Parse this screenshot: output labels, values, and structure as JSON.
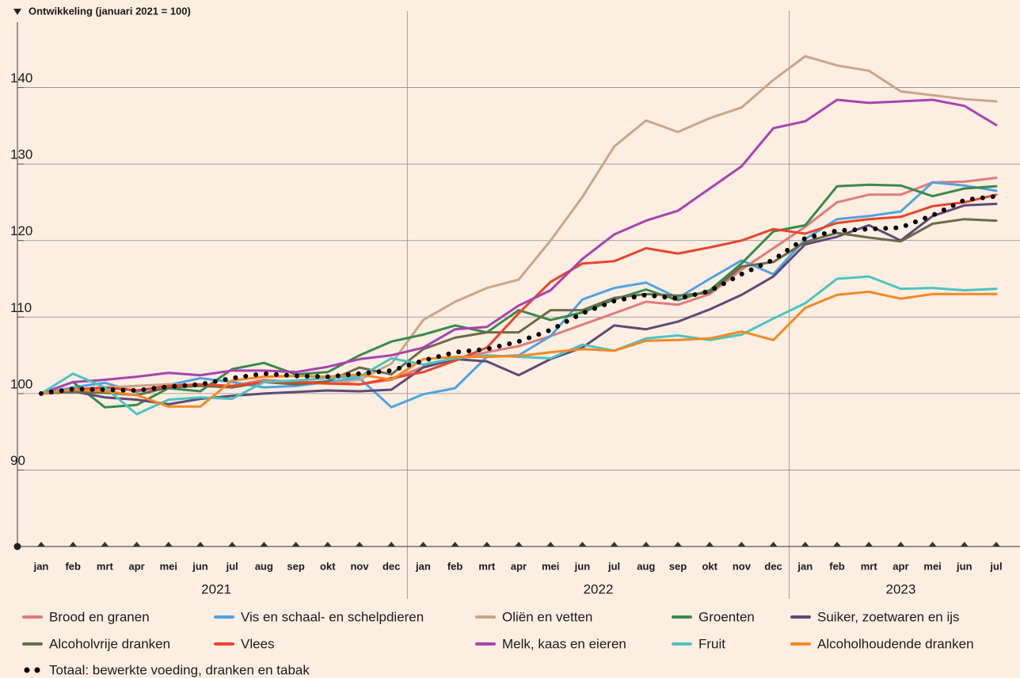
{
  "chart_data": {
    "type": "line",
    "y_axis_title": "Ontwikkeling (januari 2021 = 100)",
    "categories": [
      "jan",
      "feb",
      "mrt",
      "apr",
      "mei",
      "jun",
      "jul",
      "aug",
      "sep",
      "okt",
      "nov",
      "dec",
      "jan",
      "feb",
      "mrt",
      "apr",
      "mei",
      "jun",
      "jul",
      "aug",
      "sep",
      "okt",
      "nov",
      "dec",
      "jan",
      "feb",
      "mrt",
      "apr",
      "mei",
      "jun",
      "jul"
    ],
    "years": [
      "2021",
      "2022",
      "2023"
    ],
    "ylim": [
      80,
      150
    ],
    "yticks": [
      90,
      100,
      110,
      120,
      130,
      140
    ],
    "grid": true,
    "series": [
      {
        "name": "Brood en granen",
        "color": "#e07b7b",
        "values": [
          100,
          100.5,
          100.7,
          101,
          101.2,
          101,
          101,
          101.8,
          101.5,
          101.5,
          101.2,
          101.8,
          103.5,
          104.5,
          105.4,
          106.2,
          107.5,
          109,
          110.5,
          112,
          111.6,
          113,
          116.2,
          119,
          121.8,
          125,
          126,
          126,
          127.6,
          127.7,
          128.2
        ]
      },
      {
        "name": "Vis en schaal- en schelpdieren",
        "color": "#4fa3e0",
        "values": [
          100,
          100.8,
          101.4,
          100.2,
          101.1,
          102,
          101.5,
          100.8,
          101,
          101.5,
          102,
          98.2,
          99.9,
          100.7,
          104.8,
          105,
          107.5,
          112.3,
          113.8,
          114.5,
          112.5,
          115,
          117.4,
          115.6,
          120.2,
          122.8,
          123.2,
          123.8,
          127.6,
          127.2,
          126.5
        ]
      },
      {
        "name": "Oliën en vetten",
        "color": "#c9a58a",
        "values": [
          100,
          100.5,
          100.8,
          101,
          101.2,
          101,
          101,
          101.5,
          101.5,
          101.3,
          101.8,
          103.9,
          109.6,
          112,
          113.8,
          114.9,
          120,
          125.7,
          132.3,
          135.7,
          134.2,
          136,
          137.4,
          141,
          144.1,
          142.9,
          142.2,
          139.5,
          139,
          138.5,
          138.2
        ]
      },
      {
        "name": "Groenten",
        "color": "#3a8a4a",
        "values": [
          100,
          101.5,
          98.2,
          98.5,
          100.7,
          100.3,
          103.2,
          104,
          102.5,
          102.8,
          105,
          106.8,
          107.7,
          108.9,
          108,
          110.9,
          109.6,
          110.6,
          112.3,
          113.6,
          112.2,
          113.5,
          117,
          121.2,
          122,
          127.1,
          127.3,
          127.2,
          125.8,
          126.8,
          127.1
        ]
      },
      {
        "name": "Suiker, zoetwaren en ijs",
        "color": "#5d4a78",
        "values": [
          100,
          100.3,
          99.5,
          99.2,
          98.6,
          99.3,
          99.7,
          100,
          100.2,
          100.4,
          100.3,
          100.5,
          103.4,
          104.5,
          104.2,
          102.4,
          104.5,
          106,
          108.9,
          108.4,
          109.4,
          111,
          112.9,
          115.3,
          119.5,
          120.5,
          122,
          120,
          123.2,
          124.6,
          124.8
        ]
      },
      {
        "name": "Alcoholvrije dranken",
        "color": "#6b6b4a",
        "values": [
          100,
          100.2,
          100.1,
          99.8,
          100.8,
          101,
          100.8,
          101.5,
          101.2,
          101.6,
          103.4,
          102.5,
          105.8,
          107.3,
          108,
          108,
          110.9,
          110.9,
          112.5,
          113,
          112.8,
          113.2,
          116.6,
          117.2,
          119.8,
          121,
          120.4,
          119.9,
          122.2,
          122.8,
          122.6
        ]
      },
      {
        "name": "Vlees",
        "color": "#e8452a",
        "values": [
          100,
          100.5,
          100.8,
          100.4,
          101,
          101.2,
          101,
          101.5,
          101.5,
          101.3,
          101.2,
          102,
          102.8,
          104.3,
          106,
          110.5,
          114.6,
          117,
          117.3,
          119,
          118.3,
          119.1,
          120,
          121.5,
          120.9,
          122.3,
          122.8,
          123.1,
          124.5,
          125,
          126
        ]
      },
      {
        "name": "Melk, kaas en eieren",
        "color": "#a843b0",
        "values": [
          100,
          101.5,
          101.8,
          102.2,
          102.7,
          102.4,
          103,
          103,
          102.8,
          103.5,
          104.5,
          105,
          106,
          108.4,
          108.7,
          111.5,
          113.5,
          117.6,
          120.8,
          122.6,
          123.9,
          126.8,
          129.7,
          134.7,
          135.6,
          138.4,
          138,
          138.2,
          138.4,
          137.6,
          135.1
        ]
      },
      {
        "name": "Fruit",
        "color": "#4cc4c0",
        "values": [
          100,
          102.6,
          100.8,
          97.3,
          99.2,
          99.5,
          99.3,
          101.5,
          101.7,
          102,
          102.2,
          104.6,
          103.8,
          104.6,
          105,
          104.8,
          104.6,
          106.4,
          105.6,
          107.2,
          107.6,
          107,
          107.7,
          109.8,
          111.8,
          115,
          115.3,
          113.7,
          113.8,
          113.5,
          113.7
        ]
      },
      {
        "name": "Alcoholhoudende dranken",
        "color": "#f08a24",
        "values": [
          100,
          100.5,
          100.3,
          99.8,
          98.3,
          98.3,
          101.7,
          102.2,
          102.3,
          102.2,
          102.5,
          101.8,
          104.5,
          104.8,
          104.8,
          104.9,
          105.4,
          105.8,
          105.6,
          106.9,
          107,
          107.2,
          108.1,
          107,
          111.2,
          112.9,
          113.3,
          112.4,
          113,
          113,
          113
        ]
      },
      {
        "name": "Totaal: bewerkte voeding, dranken en tabak",
        "color": "#000000",
        "style": "dotted",
        "values": [
          100,
          100.6,
          100.5,
          100.4,
          100.9,
          101.2,
          102,
          102.6,
          102.3,
          102.2,
          102.6,
          103,
          104.3,
          105.4,
          105.8,
          106.8,
          108.3,
          110.5,
          112.1,
          112.9,
          112.4,
          113.4,
          115.6,
          117.5,
          120.3,
          121.3,
          121.5,
          121.7,
          123.3,
          125.3,
          125.8
        ]
      }
    ]
  }
}
